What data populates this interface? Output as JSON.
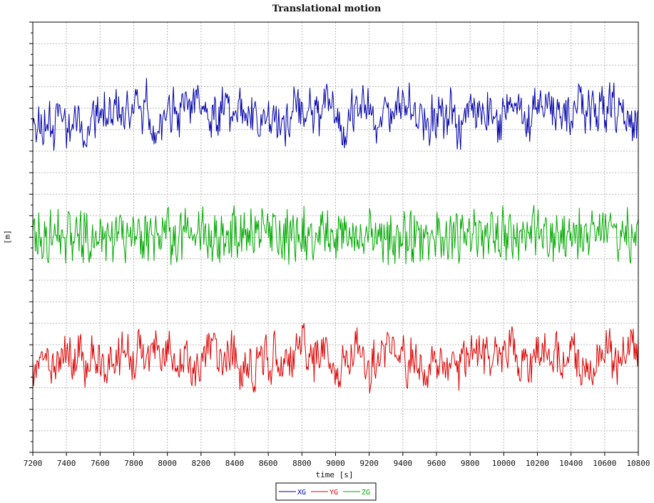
{
  "chart_data": {
    "type": "line",
    "title": "Translational motion",
    "xlabel": "time [s]",
    "ylabel": "[m]",
    "xlim": [
      7200,
      10800
    ],
    "x_ticks": [
      "7200",
      "7400",
      "7600",
      "7800",
      "8000",
      "8200",
      "8400",
      "8600",
      "8800",
      "9000",
      "9200",
      "9400",
      "9600",
      "9800",
      "10000",
      "10200",
      "10400",
      "10600",
      "10800"
    ],
    "grid": true,
    "legend_placement": "bottom-center",
    "series": [
      {
        "name": "XG",
        "color": "#0000aa",
        "center": 0.785,
        "amp": 0.085,
        "seed": 11,
        "smooth": 0.82
      },
      {
        "name": "ZG",
        "color": "#00aa00",
        "center": 0.505,
        "amp": 0.07,
        "seed": 23,
        "smooth": 0.0
      },
      {
        "name": "YG",
        "color": "#dd0000",
        "center": 0.215,
        "amp": 0.085,
        "seed": 37,
        "smooth": 0.82
      }
    ]
  }
}
